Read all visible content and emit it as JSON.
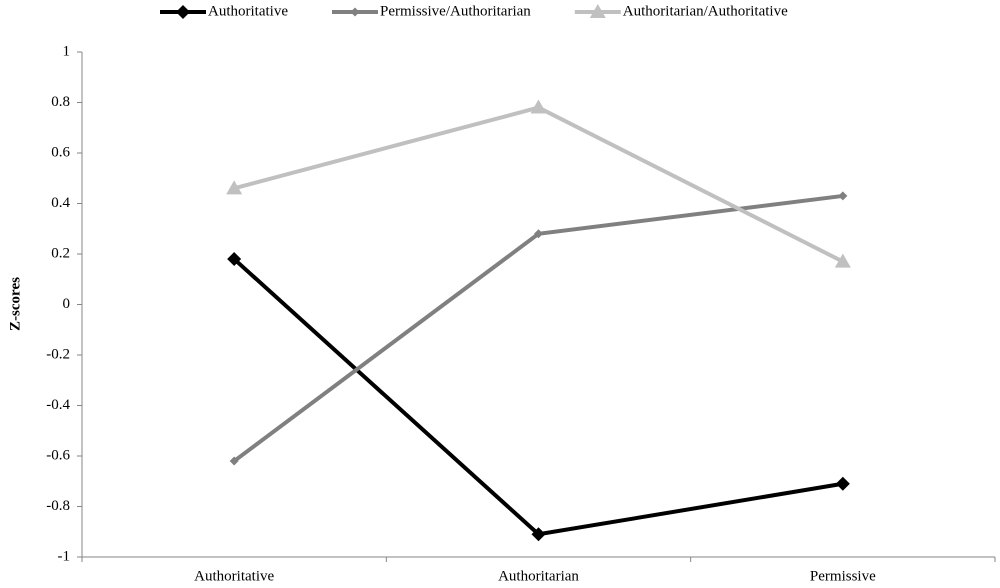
{
  "chart_data": {
    "type": "line",
    "y_label": "Z-scores",
    "categories": [
      "Authoritative",
      "Authoritarian",
      "Permissive"
    ],
    "series": [
      {
        "name": "Authoritative",
        "color": "#000000",
        "marker": "diamond",
        "values": [
          0.18,
          -0.91,
          -0.71
        ]
      },
      {
        "name": "Permissive/Authoritarian",
        "color": "#808080",
        "marker": "small-diamond",
        "values": [
          -0.62,
          0.28,
          0.43
        ]
      },
      {
        "name": "Authoritarian/Authoritative",
        "color": "#c0c0c0",
        "marker": "triangle",
        "values": [
          0.46,
          0.78,
          0.17
        ]
      }
    ],
    "ylim": [
      -1,
      1
    ],
    "yticks": [
      -1,
      -0.8,
      -0.6,
      -0.4,
      -0.2,
      0,
      0.2,
      0.4,
      0.6,
      0.8,
      1
    ],
    "grid": false,
    "legend": "top"
  }
}
